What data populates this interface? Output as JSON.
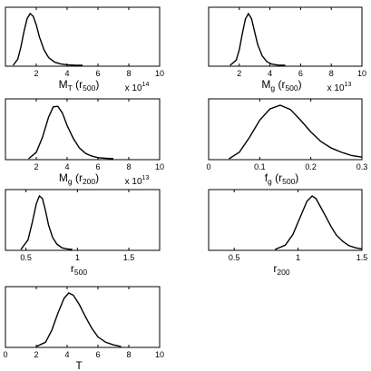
{
  "chart_data": [
    {
      "type": "line",
      "xlabel": "M_T (r_500)",
      "xlabel_main": "M",
      "xlabel_sub": "T",
      "xlabel_tail": " (r",
      "xlabel_tail_sub": "500",
      "xlabel_close": ")",
      "multiplier_base": "x 10",
      "multiplier_exp": "14",
      "xlim": [
        0,
        10
      ],
      "xticks": [
        0,
        2,
        4,
        6,
        8,
        10
      ],
      "xtick_labels": [
        "",
        "2",
        "4",
        "6",
        "8",
        "10"
      ],
      "x": [
        0.5,
        0.8,
        1.0,
        1.2,
        1.4,
        1.6,
        1.8,
        2.0,
        2.2,
        2.5,
        2.8,
        3.2,
        3.6,
        4.0,
        4.5,
        5.0
      ],
      "y": [
        0.0,
        0.12,
        0.35,
        0.65,
        0.9,
        1.0,
        0.95,
        0.78,
        0.55,
        0.3,
        0.15,
        0.06,
        0.025,
        0.01,
        0.003,
        0.0
      ]
    },
    {
      "type": "line",
      "xlabel": "M_g (r_500)",
      "xlabel_main": "M",
      "xlabel_sub": "g",
      "xlabel_tail": " (r",
      "xlabel_tail_sub": "500",
      "xlabel_close": ")",
      "multiplier_base": "x 10",
      "multiplier_exp": "13",
      "xlim": [
        0,
        10
      ],
      "xticks": [
        0,
        2,
        4,
        6,
        8,
        10
      ],
      "xtick_labels": [
        "",
        "2",
        "4",
        "6",
        "8",
        "10"
      ],
      "x": [
        1.4,
        1.8,
        2.0,
        2.2,
        2.4,
        2.6,
        2.8,
        3.0,
        3.2,
        3.5,
        3.8,
        4.1,
        4.5,
        5.0
      ],
      "y": [
        0.0,
        0.1,
        0.3,
        0.62,
        0.9,
        1.0,
        0.9,
        0.65,
        0.4,
        0.18,
        0.07,
        0.025,
        0.005,
        0.0
      ]
    },
    {
      "type": "line",
      "xlabel": "M_g (r_200)",
      "xlabel_main": "M",
      "xlabel_sub": "g",
      "xlabel_tail": " (r",
      "xlabel_tail_sub": "200",
      "xlabel_close": ")",
      "multiplier_base": "x 10",
      "multiplier_exp": "13",
      "xlim": [
        0,
        10
      ],
      "xticks": [
        0,
        2,
        4,
        6,
        8,
        10
      ],
      "xtick_labels": [
        "",
        "2",
        "4",
        "6",
        "8",
        "10"
      ],
      "x": [
        1.5,
        2.0,
        2.4,
        2.8,
        3.1,
        3.4,
        3.7,
        4.0,
        4.4,
        4.8,
        5.2,
        5.6,
        6.0,
        6.5,
        7.0
      ],
      "y": [
        0.0,
        0.12,
        0.4,
        0.78,
        0.97,
        0.98,
        0.85,
        0.62,
        0.38,
        0.2,
        0.1,
        0.05,
        0.02,
        0.008,
        0.0
      ]
    },
    {
      "type": "line",
      "xlabel": "f_g (r_500)",
      "xlabel_main": "f",
      "xlabel_sub": "g",
      "xlabel_tail": " (r",
      "xlabel_tail_sub": "500",
      "xlabel_close": ")",
      "multiplier_base": "",
      "multiplier_exp": "",
      "xlim": [
        0,
        0.3
      ],
      "xticks": [
        0,
        0.1,
        0.2,
        0.3
      ],
      "xtick_labels": [
        "0",
        "0.1",
        "0.2",
        "0.3"
      ],
      "x": [
        0.04,
        0.06,
        0.08,
        0.1,
        0.12,
        0.14,
        0.16,
        0.18,
        0.2,
        0.22,
        0.24,
        0.26,
        0.28,
        0.3
      ],
      "y": [
        0.0,
        0.12,
        0.4,
        0.72,
        0.93,
        1.0,
        0.92,
        0.72,
        0.5,
        0.32,
        0.2,
        0.12,
        0.06,
        0.03
      ]
    },
    {
      "type": "line",
      "xlabel": "r_500",
      "xlabel_main": "r",
      "xlabel_sub": "500",
      "xlabel_tail": "",
      "xlabel_tail_sub": "",
      "xlabel_close": "",
      "multiplier_base": "",
      "multiplier_exp": "",
      "xlim": [
        0.3,
        1.8
      ],
      "xticks": [
        0.5,
        1.0,
        1.5
      ],
      "xtick_labels": [
        "0.5",
        "1",
        "1.5"
      ],
      "x": [
        0.45,
        0.52,
        0.56,
        0.6,
        0.63,
        0.66,
        0.69,
        0.72,
        0.76,
        0.8,
        0.85,
        0.9,
        0.95
      ],
      "y": [
        0.0,
        0.18,
        0.5,
        0.85,
        1.0,
        0.95,
        0.72,
        0.45,
        0.22,
        0.1,
        0.03,
        0.01,
        0.0
      ]
    },
    {
      "type": "line",
      "xlabel": "r_200",
      "xlabel_main": "r",
      "xlabel_sub": "200",
      "xlabel_tail": "",
      "xlabel_tail_sub": "",
      "xlabel_close": "",
      "multiplier_base": "",
      "multiplier_exp": "",
      "xlim": [
        0.3,
        1.5
      ],
      "xticks": [
        0.5,
        1.0,
        1.5
      ],
      "xtick_labels": [
        "0.5",
        "1",
        "1.5"
      ],
      "x": [
        0.82,
        0.9,
        0.96,
        1.02,
        1.07,
        1.11,
        1.14,
        1.18,
        1.22,
        1.26,
        1.3,
        1.35,
        1.4,
        1.45,
        1.5
      ],
      "y": [
        0.0,
        0.08,
        0.28,
        0.62,
        0.9,
        1.0,
        0.95,
        0.78,
        0.6,
        0.42,
        0.27,
        0.15,
        0.07,
        0.03,
        0.01
      ]
    },
    {
      "type": "line",
      "xlabel": "T",
      "xlabel_main": "T",
      "xlabel_sub": "",
      "xlabel_tail": "",
      "xlabel_tail_sub": "",
      "xlabel_close": "",
      "multiplier_base": "",
      "multiplier_exp": "",
      "xlim": [
        0,
        10
      ],
      "xticks": [
        0,
        2,
        4,
        6,
        8,
        10
      ],
      "xtick_labels": [
        "0",
        "2",
        "4",
        "6",
        "8",
        "10"
      ],
      "x": [
        2.0,
        2.6,
        3.0,
        3.4,
        3.8,
        4.1,
        4.4,
        4.8,
        5.2,
        5.6,
        6.0,
        6.5,
        7.0,
        7.5
      ],
      "y": [
        0.0,
        0.08,
        0.3,
        0.62,
        0.9,
        1.0,
        0.96,
        0.78,
        0.55,
        0.34,
        0.18,
        0.08,
        0.03,
        0.0
      ]
    }
  ]
}
